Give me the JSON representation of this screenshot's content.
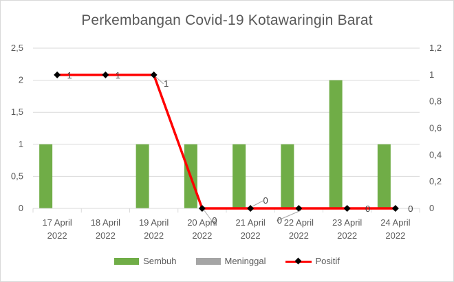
{
  "chart_data": {
    "type": "bar",
    "title": "Perkembangan  Covid-19 Kotawaringin Barat",
    "categories": [
      [
        "17 April",
        "2022"
      ],
      [
        "18 April",
        "2022"
      ],
      [
        "19 April",
        "2022"
      ],
      [
        "20 April",
        "2022"
      ],
      [
        "21 April",
        "2022"
      ],
      [
        "22 April",
        "2022"
      ],
      [
        "23 April",
        "2022"
      ],
      [
        "24 April",
        "2022"
      ]
    ],
    "series": [
      {
        "name": "Sembuh",
        "type": "bar",
        "axis": "left",
        "color": "#70ad47",
        "values": [
          1,
          0,
          1,
          1,
          1,
          1,
          2,
          1
        ]
      },
      {
        "name": "Meninggal",
        "type": "bar",
        "axis": "left",
        "color": "#a5a5a5",
        "values": [
          0,
          0,
          0,
          0,
          0,
          0,
          0,
          0
        ]
      },
      {
        "name": "Positif",
        "type": "line",
        "axis": "right",
        "color": "#ff0000",
        "marker": "diamond",
        "marker_color": "#000000",
        "values": [
          1,
          1,
          1,
          0,
          0,
          0,
          0,
          0
        ],
        "data_labels": [
          "1",
          "1",
          "1",
          "0",
          "0",
          "0",
          "0",
          "0"
        ]
      }
    ],
    "y_left": {
      "ylim": [
        0,
        2.5
      ],
      "ticks": [
        "0",
        "0,5",
        "1",
        "1,5",
        "2",
        "2,5"
      ],
      "tick_values": [
        0,
        0.5,
        1,
        1.5,
        2,
        2.5
      ]
    },
    "y_right": {
      "ylim": [
        0,
        1.2
      ],
      "ticks": [
        "0",
        "0,2",
        "0,4",
        "0,6",
        "0,8",
        "1",
        "1,2"
      ],
      "tick_values": [
        0,
        0.2,
        0.4,
        0.6,
        0.8,
        1,
        1.2
      ]
    },
    "grid": true,
    "legend_position": "bottom"
  }
}
